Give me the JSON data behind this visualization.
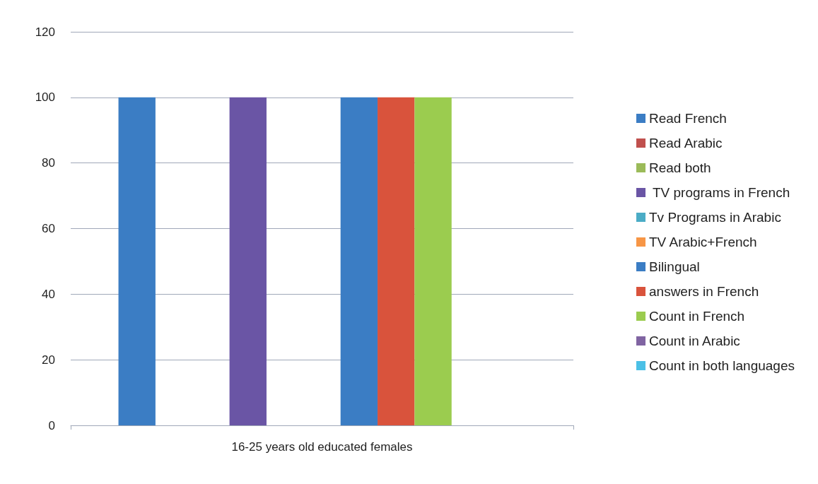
{
  "chart_data": {
    "type": "bar",
    "categories": [
      "16-25 years old educated females"
    ],
    "series": [
      {
        "name": "Read French",
        "color": "#3b7dc4",
        "values": [
          100
        ]
      },
      {
        "name": "Read Arabic",
        "color": "#c0504d",
        "values": [
          0
        ]
      },
      {
        "name": "Read both",
        "color": "#9bbb59",
        "values": [
          0
        ]
      },
      {
        "name": " TV programs in French",
        "color": "#6a55a5",
        "values": [
          100
        ]
      },
      {
        "name": "Tv Programs in Arabic",
        "color": "#4bacc6",
        "values": [
          0
        ]
      },
      {
        "name": "TV Arabic+French",
        "color": "#f79646",
        "values": [
          0
        ]
      },
      {
        "name": "Bilingual",
        "color": "#3b7dc4",
        "values": [
          100
        ]
      },
      {
        "name": "answers in French",
        "color": "#d9533c",
        "values": [
          100
        ]
      },
      {
        "name": "Count in French",
        "color": "#9bcc4f",
        "values": [
          100
        ]
      },
      {
        "name": "Count in Arabic",
        "color": "#8064a2",
        "values": [
          0
        ]
      },
      {
        "name": "Count in both languages",
        "color": "#4bc0e6",
        "values": [
          0
        ]
      }
    ],
    "ylim": [
      0,
      120
    ],
    "yticks": [
      0,
      20,
      40,
      60,
      80,
      100,
      120
    ],
    "grid": "y",
    "legend": "right"
  }
}
